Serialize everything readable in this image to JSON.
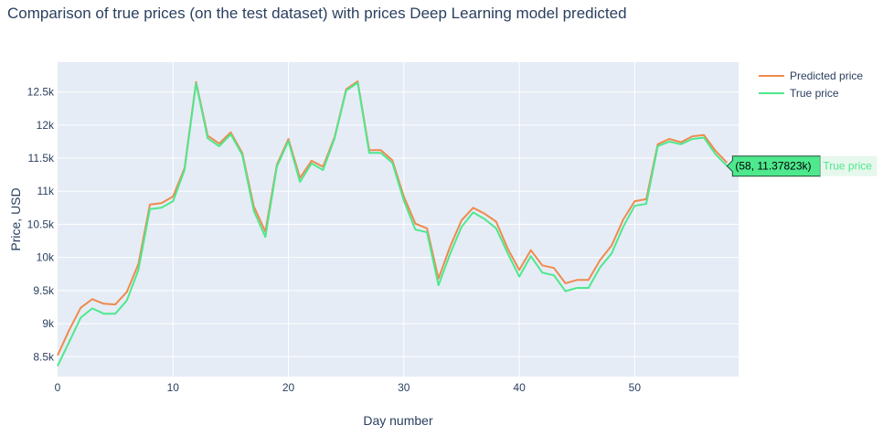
{
  "chart_data": {
    "type": "line",
    "title": "Comparison of true prices (on the test dataset) with prices Deep Learning model predicted",
    "xlabel": "Day number",
    "ylabel": "Price, USD",
    "xlim": [
      0,
      59
    ],
    "ylim": [
      8200,
      12950
    ],
    "x_ticks": [
      0,
      10,
      20,
      30,
      40,
      50
    ],
    "x_tick_labels": [
      "0",
      "10",
      "20",
      "30",
      "40",
      "50"
    ],
    "y_ticks": [
      8500,
      9000,
      9500,
      10000,
      10500,
      11000,
      11500,
      12000,
      12500
    ],
    "y_tick_labels": [
      "8.5k",
      "9k",
      "9.5k",
      "10k",
      "10.5k",
      "11k",
      "11.5k",
      "12k",
      "12.5k"
    ],
    "grid": true,
    "legend_position": "top-right",
    "x": [
      0,
      1,
      2,
      3,
      4,
      5,
      6,
      7,
      8,
      9,
      10,
      11,
      12,
      13,
      14,
      15,
      16,
      17,
      18,
      19,
      20,
      21,
      22,
      23,
      24,
      25,
      26,
      27,
      28,
      29,
      30,
      31,
      32,
      33,
      34,
      35,
      36,
      37,
      38,
      39,
      40,
      41,
      42,
      43,
      44,
      45,
      46,
      47,
      48,
      49,
      50,
      51,
      52,
      53,
      54,
      55,
      56,
      57,
      58
    ],
    "series": [
      {
        "name": "Predicted price",
        "color": "#ef8a4d",
        "values": [
          8520,
          8900,
          9240,
          9370,
          9300,
          9290,
          9480,
          9900,
          10800,
          10820,
          10920,
          11350,
          12650,
          11840,
          11720,
          11890,
          11580,
          10770,
          10390,
          11400,
          11790,
          11200,
          11460,
          11370,
          11820,
          12540,
          12660,
          11620,
          11620,
          11470,
          10920,
          10510,
          10440,
          9680,
          10160,
          10560,
          10750,
          10660,
          10540,
          10130,
          9810,
          10110,
          9880,
          9840,
          9610,
          9660,
          9660,
          9960,
          10180,
          10570,
          10850,
          10880,
          11710,
          11790,
          11740,
          11830,
          11850,
          11610,
          11430
        ]
      },
      {
        "name": "True price",
        "color": "#4ee88d",
        "values": [
          8360,
          8720,
          9090,
          9230,
          9150,
          9150,
          9350,
          9810,
          10730,
          10750,
          10850,
          11320,
          12630,
          11800,
          11680,
          11860,
          11550,
          10700,
          10310,
          11370,
          11760,
          11140,
          11420,
          11320,
          11800,
          12520,
          12640,
          11580,
          11580,
          11430,
          10860,
          10420,
          10380,
          9580,
          10050,
          10460,
          10680,
          10580,
          10440,
          10060,
          9710,
          10020,
          9770,
          9730,
          9490,
          9540,
          9540,
          9850,
          10060,
          10460,
          10780,
          10810,
          11680,
          11750,
          11710,
          11790,
          11810,
          11560,
          11380
        ]
      }
    ],
    "hover": {
      "label": "(58, 11.37823k)",
      "series_name": "True price"
    }
  }
}
